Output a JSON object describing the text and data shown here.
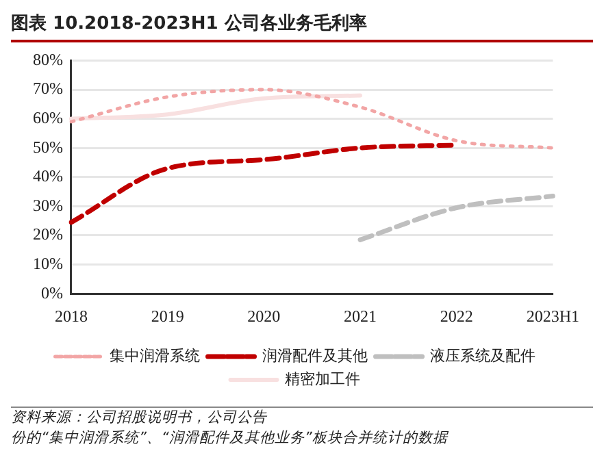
{
  "chart_data": {
    "type": "line",
    "title": "图表 10.2018-2023H1 公司各业务毛利率",
    "categories": [
      "2018",
      "2019",
      "2020",
      "2021",
      "2022",
      "2023H1"
    ],
    "series": [
      {
        "name": "集中润滑系统",
        "color": "#f2a5a5",
        "line_style": "dotted",
        "values": [
          59,
          67.5,
          70,
          64,
          52.5,
          50
        ]
      },
      {
        "name": "润滑配件及其他",
        "color": "#c00000",
        "line_style": "dashed",
        "values": [
          24.5,
          43,
          46,
          50,
          51,
          null
        ]
      },
      {
        "name": "液压系统及配件",
        "color": "#bfbfbf",
        "line_style": "dashed",
        "values": [
          null,
          null,
          null,
          18.5,
          29.5,
          33.5
        ]
      },
      {
        "name": "精密加工件",
        "color": "#f8e0e0",
        "line_style": "solid",
        "values": [
          60,
          61.5,
          67,
          68,
          null,
          null
        ]
      }
    ],
    "ylim": [
      0,
      80
    ],
    "yticks": [
      {
        "value": 0,
        "label": "0%"
      },
      {
        "value": 10,
        "label": "10%"
      },
      {
        "value": 20,
        "label": "20%"
      },
      {
        "value": 30,
        "label": "30%"
      },
      {
        "value": 40,
        "label": "40%"
      },
      {
        "value": 50,
        "label": "50%"
      },
      {
        "value": 60,
        "label": "60%"
      },
      {
        "value": 70,
        "label": "70%"
      },
      {
        "value": 80,
        "label": "80%"
      }
    ],
    "grid": "y",
    "legend": "bottom",
    "marker": "none",
    "annotations": [
      "资料来源：公司招股说明书，公司公告",
      "份的“集中润滑系统”、“润滑配件及其他业务”板块合并统计的数据"
    ]
  }
}
